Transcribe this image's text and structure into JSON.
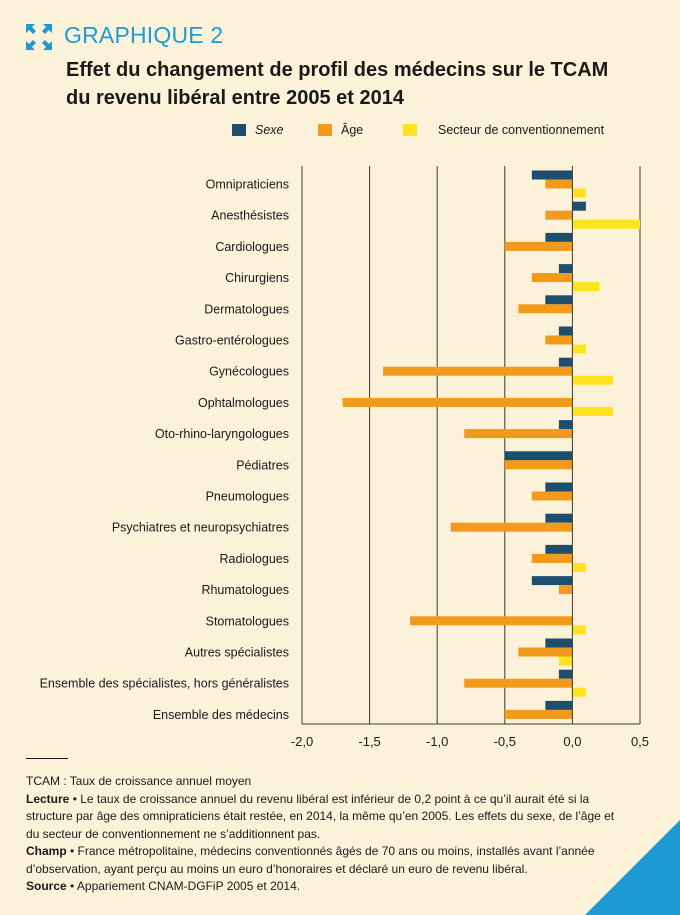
{
  "header": {
    "kicker": "GRAPHIQUE 2",
    "title_line1": "Effet du changement de profil des médecins sur le TCAM",
    "title_line2": "du revenu libéral entre 2005 et 2014"
  },
  "colors": {
    "background": "#fcf2d9",
    "sexe": "#1d4e6e",
    "age": "#f29a1a",
    "secteur": "#ffe320",
    "accent": "#1e9ad6",
    "gridline": "#3a3a3a"
  },
  "icons": {
    "kicker_icon": "expand-arrows-icon",
    "corner": "blue-corner-triangle"
  },
  "chart_data": {
    "type": "bar",
    "orientation": "horizontal",
    "title": "Effet du changement de profil des médecins sur le TCAM du revenu libéral entre 2005 et 2014",
    "xlabel": "",
    "ylabel": "",
    "xlim": [
      -2.0,
      0.5
    ],
    "x_ticks": [
      "-2,0",
      "-1,5",
      "-1,0",
      "-0,5",
      "0,0",
      "0,5"
    ],
    "x_tick_values": [
      -2.0,
      -1.5,
      -1.0,
      -0.5,
      0.0,
      0.5
    ],
    "grid": "vertical",
    "legend_position": "top",
    "categories": [
      "Omnipraticiens",
      "Anesthésistes",
      "Cardiologues",
      "Chirurgiens",
      "Dermatologues",
      "Gastro-entérologues",
      "Gynécologues",
      "Ophtalmologues",
      "Oto-rhino-laryngologues",
      "Pédiatres",
      "Pneumologues",
      "Psychiatres et neuropsychiatres",
      "Radiologues",
      "Rhumatologues",
      "Stomatologues",
      "Autres spécialistes",
      "Ensemble des spécialistes, hors généralistes",
      "Ensemble des médecins"
    ],
    "series": [
      {
        "name": "Sexe",
        "color": "#1d4e6e",
        "values": [
          -0.3,
          0.1,
          -0.2,
          -0.1,
          -0.2,
          -0.1,
          -0.1,
          0.0,
          -0.1,
          -0.5,
          -0.2,
          -0.2,
          -0.2,
          -0.3,
          0.0,
          -0.2,
          -0.1,
          -0.2
        ]
      },
      {
        "name": "Âge",
        "color": "#f29a1a",
        "values": [
          -0.2,
          -0.2,
          -0.5,
          -0.3,
          -0.4,
          -0.2,
          -1.4,
          -1.7,
          -0.8,
          -0.5,
          -0.3,
          -0.9,
          -0.3,
          -0.1,
          -1.2,
          -0.4,
          -0.8,
          -0.5
        ]
      },
      {
        "name": "Secteur de conventionnement",
        "color": "#ffe320",
        "values": [
          0.1,
          0.5,
          0.0,
          0.2,
          0.0,
          0.1,
          0.3,
          0.3,
          0.0,
          0.0,
          0.0,
          0.0,
          0.1,
          0.0,
          0.1,
          -0.1,
          0.1,
          0.0
        ]
      }
    ]
  },
  "footnotes": {
    "tcam": "TCAM : Taux de croissance annuel moyen",
    "lecture_label": "Lecture",
    "lecture_text": " • Le taux de croissance annuel du revenu libéral est inférieur de 0,2 point à ce qu’il aurait été si la structure par âge des omnipraticiens était restée, en 2014, la même qu’en 2005. Les effets du sexe, de l’âge et du secteur de conventionnement ne s’additionnent pas.",
    "champ_label": "Champ",
    "champ_text": " • France métropolitaine, médecins conventionnés âgés de 70 ans ou moins, installés avant l’année d’observation, ayant perçu au moins un euro d’honoraires et déclaré un euro de revenu libéral.",
    "source_label": "Source",
    "source_text": " • Appariement CNAM-DGFiP 2005 et 2014."
  }
}
